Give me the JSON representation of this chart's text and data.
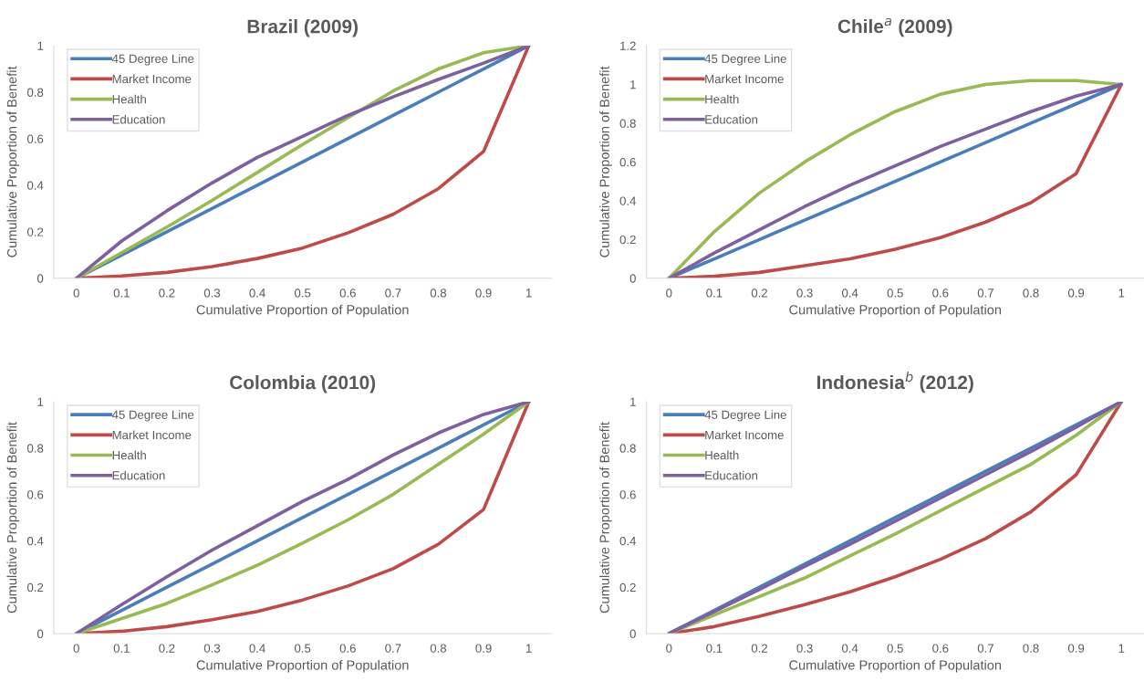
{
  "chart_data": [
    {
      "type": "line",
      "title": "Brazil (2009)",
      "xlabel": "Cumulative Proportion of Population",
      "ylabel": "Cumulative Proportion of Benefit",
      "categories": [
        "0",
        "0.1",
        "0.2",
        "0.3",
        "0.4",
        "0.5",
        "0.6",
        "0.7",
        "0.8",
        "0.9",
        "1"
      ],
      "ylim": [
        0,
        1
      ],
      "yticks": [
        0,
        0.2,
        0.4,
        0.6,
        0.8,
        1
      ],
      "grid": false,
      "legend": "top left",
      "series": [
        {
          "name": "45 Degree Line",
          "color": "#4a7ebb",
          "values": [
            0,
            0.1,
            0.2,
            0.3,
            0.4,
            0.5,
            0.6,
            0.7,
            0.8,
            0.9,
            1
          ]
        },
        {
          "name": "Market Income",
          "color": "#be4b48",
          "values": [
            0,
            0.01,
            0.025,
            0.05,
            0.085,
            0.13,
            0.195,
            0.275,
            0.385,
            0.545,
            1
          ]
        },
        {
          "name": "Health",
          "color": "#98b954",
          "values": [
            0,
            0.11,
            0.22,
            0.335,
            0.455,
            0.575,
            0.69,
            0.805,
            0.9,
            0.97,
            1
          ]
        },
        {
          "name": "Education",
          "color": "#7d60a0",
          "values": [
            0,
            0.16,
            0.29,
            0.41,
            0.52,
            0.61,
            0.7,
            0.78,
            0.855,
            0.925,
            1
          ]
        }
      ]
    },
    {
      "type": "line",
      "title": "Chile$^{a}$ (2009)",
      "xlabel": "Cumulative Proportion of Population",
      "ylabel": "Cumulative Proportion of Benefit",
      "categories": [
        "0",
        "0.1",
        "0.2",
        "0.3",
        "0.4",
        "0.5",
        "0.6",
        "0.7",
        "0.8",
        "0.9",
        "1"
      ],
      "ylim": [
        0,
        1.2
      ],
      "yticks": [
        0,
        0.2,
        0.4,
        0.6,
        0.8,
        1,
        1.2
      ],
      "grid": false,
      "legend": "top left",
      "series": [
        {
          "name": "45 Degree Line",
          "color": "#4a7ebb",
          "values": [
            0,
            0.1,
            0.2,
            0.3,
            0.4,
            0.5,
            0.6,
            0.7,
            0.8,
            0.9,
            1
          ]
        },
        {
          "name": "Market Income",
          "color": "#be4b48",
          "values": [
            0,
            0.01,
            0.03,
            0.065,
            0.1,
            0.15,
            0.21,
            0.29,
            0.39,
            0.54,
            1
          ]
        },
        {
          "name": "Health",
          "color": "#98b954",
          "values": [
            0,
            0.24,
            0.44,
            0.6,
            0.74,
            0.86,
            0.95,
            1.0,
            1.02,
            1.02,
            1.0
          ]
        },
        {
          "name": "Education",
          "color": "#7d60a0",
          "values": [
            0,
            0.13,
            0.25,
            0.37,
            0.48,
            0.58,
            0.68,
            0.77,
            0.86,
            0.94,
            1
          ]
        }
      ]
    },
    {
      "type": "line",
      "title": "Colombia (2010)",
      "xlabel": "Cumulative Proportion of Population",
      "ylabel": "Cumulative Proportion of Benefit",
      "categories": [
        "0",
        "0.1",
        "0.2",
        "0.3",
        "0.4",
        "0.5",
        "0.6",
        "0.7",
        "0.8",
        "0.9",
        "1"
      ],
      "ylim": [
        0,
        1
      ],
      "yticks": [
        0,
        0.2,
        0.4,
        0.6,
        0.8,
        1
      ],
      "grid": false,
      "legend": "top left",
      "series": [
        {
          "name": "45 Degree Line",
          "color": "#4a7ebb",
          "values": [
            0,
            0.1,
            0.2,
            0.3,
            0.4,
            0.5,
            0.6,
            0.7,
            0.8,
            0.9,
            1
          ]
        },
        {
          "name": "Market Income",
          "color": "#be4b48",
          "values": [
            0,
            0.01,
            0.03,
            0.06,
            0.095,
            0.145,
            0.205,
            0.28,
            0.385,
            0.535,
            1
          ]
        },
        {
          "name": "Health",
          "color": "#98b954",
          "values": [
            0,
            0.065,
            0.13,
            0.21,
            0.295,
            0.39,
            0.49,
            0.6,
            0.73,
            0.86,
            1
          ]
        },
        {
          "name": "Education",
          "color": "#7d60a0",
          "values": [
            0,
            0.125,
            0.245,
            0.36,
            0.465,
            0.57,
            0.665,
            0.77,
            0.865,
            0.945,
            1
          ]
        }
      ]
    },
    {
      "type": "line",
      "title": "Indonesia$^{b}$ (2012)",
      "xlabel": "Cumulative Proportion of Population",
      "ylabel": "Cumulative Proportion of Benefit",
      "categories": [
        "0",
        "0.1",
        "0.2",
        "0.3",
        "0.4",
        "0.5",
        "0.6",
        "0.7",
        "0.8",
        "0.9",
        "1"
      ],
      "ylim": [
        0,
        1
      ],
      "yticks": [
        0,
        0.2,
        0.4,
        0.6,
        0.8,
        1
      ],
      "grid": false,
      "legend": "top left",
      "series": [
        {
          "name": "45 Degree Line",
          "color": "#4a7ebb",
          "values": [
            0,
            0.1,
            0.2,
            0.3,
            0.4,
            0.5,
            0.6,
            0.7,
            0.8,
            0.9,
            1
          ]
        },
        {
          "name": "Market Income",
          "color": "#be4b48",
          "values": [
            0,
            0.03,
            0.075,
            0.125,
            0.18,
            0.245,
            0.32,
            0.41,
            0.525,
            0.685,
            1
          ]
        },
        {
          "name": "Health",
          "color": "#98b954",
          "values": [
            0,
            0.08,
            0.16,
            0.24,
            0.335,
            0.43,
            0.53,
            0.63,
            0.73,
            0.855,
            1
          ]
        },
        {
          "name": "Education",
          "color": "#7d60a0",
          "values": [
            0,
            0.095,
            0.19,
            0.29,
            0.385,
            0.485,
            0.585,
            0.685,
            0.785,
            0.89,
            1
          ]
        }
      ]
    }
  ]
}
